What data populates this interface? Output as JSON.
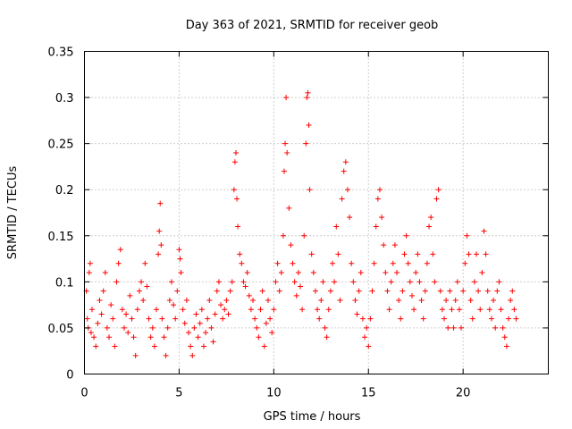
{
  "chart_data": {
    "type": "scatter",
    "marker": "+",
    "title": "Day 363 of 2021, SRMTID for receiver geob",
    "xlabel": "GPS time / hours",
    "ylabel": "SRMTID / TECUs",
    "xlim": [
      0,
      24.5
    ],
    "ylim": [
      0,
      0.35
    ],
    "xticks": [
      0,
      5,
      10,
      15,
      20
    ],
    "xtick_labels": [
      "0",
      "5",
      "10",
      "15",
      "20"
    ],
    "yticks": [
      0,
      0.05,
      0.1,
      0.15,
      0.2,
      0.25,
      0.3,
      0.35
    ],
    "ytick_labels": [
      "0",
      "0.05",
      "0.1",
      "0.15",
      "0.2",
      "0.25",
      "0.3",
      "0.35"
    ],
    "grid": true,
    "color": "#ff0000",
    "series": [
      {
        "name": "SRMTID",
        "points": [
          [
            0.1,
            0.09
          ],
          [
            0.15,
            0.06
          ],
          [
            0.2,
            0.05
          ],
          [
            0.25,
            0.11
          ],
          [
            0.3,
            0.12
          ],
          [
            0.35,
            0.045
          ],
          [
            0.4,
            0.07
          ],
          [
            0.5,
            0.04
          ],
          [
            0.6,
            0.03
          ],
          [
            0.7,
            0.055
          ],
          [
            0.8,
            0.08
          ],
          [
            0.9,
            0.065
          ],
          [
            1.0,
            0.09
          ],
          [
            1.1,
            0.11
          ],
          [
            1.2,
            0.05
          ],
          [
            1.3,
            0.04
          ],
          [
            1.4,
            0.075
          ],
          [
            1.5,
            0.06
          ],
          [
            1.6,
            0.03
          ],
          [
            1.7,
            0.1
          ],
          [
            1.8,
            0.12
          ],
          [
            1.9,
            0.135
          ],
          [
            2.0,
            0.07
          ],
          [
            2.1,
            0.05
          ],
          [
            2.2,
            0.065
          ],
          [
            2.3,
            0.045
          ],
          [
            2.4,
            0.085
          ],
          [
            2.5,
            0.06
          ],
          [
            2.6,
            0.04
          ],
          [
            2.7,
            0.02
          ],
          [
            2.8,
            0.07
          ],
          [
            2.9,
            0.09
          ],
          [
            3.0,
            0.1
          ],
          [
            3.1,
            0.08
          ],
          [
            3.2,
            0.12
          ],
          [
            3.3,
            0.095
          ],
          [
            3.4,
            0.06
          ],
          [
            3.5,
            0.04
          ],
          [
            3.6,
            0.05
          ],
          [
            3.7,
            0.03
          ],
          [
            3.8,
            0.07
          ],
          [
            3.9,
            0.13
          ],
          [
            3.95,
            0.155
          ],
          [
            4.0,
            0.185
          ],
          [
            4.05,
            0.14
          ],
          [
            4.1,
            0.06
          ],
          [
            4.2,
            0.04
          ],
          [
            4.3,
            0.02
          ],
          [
            4.4,
            0.05
          ],
          [
            4.5,
            0.08
          ],
          [
            4.6,
            0.1
          ],
          [
            4.7,
            0.075
          ],
          [
            4.8,
            0.06
          ],
          [
            4.9,
            0.09
          ],
          [
            5.0,
            0.135
          ],
          [
            5.05,
            0.125
          ],
          [
            5.1,
            0.11
          ],
          [
            5.2,
            0.07
          ],
          [
            5.3,
            0.055
          ],
          [
            5.4,
            0.08
          ],
          [
            5.5,
            0.045
          ],
          [
            5.6,
            0.03
          ],
          [
            5.7,
            0.02
          ],
          [
            5.8,
            0.05
          ],
          [
            5.9,
            0.065
          ],
          [
            6.0,
            0.04
          ],
          [
            6.1,
            0.055
          ],
          [
            6.2,
            0.07
          ],
          [
            6.3,
            0.03
          ],
          [
            6.4,
            0.045
          ],
          [
            6.5,
            0.06
          ],
          [
            6.6,
            0.08
          ],
          [
            6.7,
            0.05
          ],
          [
            6.8,
            0.035
          ],
          [
            6.9,
            0.065
          ],
          [
            7.0,
            0.09
          ],
          [
            7.1,
            0.1
          ],
          [
            7.2,
            0.075
          ],
          [
            7.3,
            0.06
          ],
          [
            7.4,
            0.07
          ],
          [
            7.5,
            0.08
          ],
          [
            7.6,
            0.065
          ],
          [
            7.7,
            0.09
          ],
          [
            7.8,
            0.1
          ],
          [
            7.9,
            0.2
          ],
          [
            7.95,
            0.23
          ],
          [
            8.0,
            0.24
          ],
          [
            8.05,
            0.19
          ],
          [
            8.1,
            0.16
          ],
          [
            8.2,
            0.13
          ],
          [
            8.3,
            0.12
          ],
          [
            8.4,
            0.1
          ],
          [
            8.5,
            0.095
          ],
          [
            8.6,
            0.11
          ],
          [
            8.7,
            0.085
          ],
          [
            8.8,
            0.07
          ],
          [
            8.9,
            0.08
          ],
          [
            9.0,
            0.06
          ],
          [
            9.1,
            0.05
          ],
          [
            9.2,
            0.04
          ],
          [
            9.3,
            0.07
          ],
          [
            9.4,
            0.09
          ],
          [
            9.5,
            0.03
          ],
          [
            9.6,
            0.055
          ],
          [
            9.7,
            0.08
          ],
          [
            9.8,
            0.06
          ],
          [
            9.9,
            0.045
          ],
          [
            10.0,
            0.07
          ],
          [
            10.1,
            0.1
          ],
          [
            10.2,
            0.12
          ],
          [
            10.3,
            0.09
          ],
          [
            10.4,
            0.11
          ],
          [
            10.5,
            0.15
          ],
          [
            10.55,
            0.22
          ],
          [
            10.6,
            0.25
          ],
          [
            10.65,
            0.3
          ],
          [
            10.7,
            0.24
          ],
          [
            10.8,
            0.18
          ],
          [
            10.9,
            0.14
          ],
          [
            11.0,
            0.12
          ],
          [
            11.1,
            0.1
          ],
          [
            11.2,
            0.085
          ],
          [
            11.3,
            0.11
          ],
          [
            11.4,
            0.095
          ],
          [
            11.5,
            0.07
          ],
          [
            11.6,
            0.15
          ],
          [
            11.7,
            0.25
          ],
          [
            11.75,
            0.3
          ],
          [
            11.8,
            0.305
          ],
          [
            11.85,
            0.27
          ],
          [
            11.9,
            0.2
          ],
          [
            12.0,
            0.13
          ],
          [
            12.1,
            0.11
          ],
          [
            12.2,
            0.09
          ],
          [
            12.3,
            0.07
          ],
          [
            12.4,
            0.06
          ],
          [
            12.5,
            0.08
          ],
          [
            12.6,
            0.1
          ],
          [
            12.7,
            0.05
          ],
          [
            12.8,
            0.04
          ],
          [
            12.9,
            0.07
          ],
          [
            13.0,
            0.09
          ],
          [
            13.1,
            0.12
          ],
          [
            13.2,
            0.1
          ],
          [
            13.3,
            0.16
          ],
          [
            13.4,
            0.13
          ],
          [
            13.5,
            0.08
          ],
          [
            13.6,
            0.19
          ],
          [
            13.7,
            0.22
          ],
          [
            13.8,
            0.23
          ],
          [
            13.9,
            0.2
          ],
          [
            14.0,
            0.17
          ],
          [
            14.1,
            0.12
          ],
          [
            14.2,
            0.1
          ],
          [
            14.3,
            0.08
          ],
          [
            14.4,
            0.065
          ],
          [
            14.5,
            0.09
          ],
          [
            14.6,
            0.11
          ],
          [
            14.7,
            0.06
          ],
          [
            14.8,
            0.04
          ],
          [
            14.9,
            0.05
          ],
          [
            15.0,
            0.03
          ],
          [
            15.1,
            0.06
          ],
          [
            15.2,
            0.09
          ],
          [
            15.3,
            0.12
          ],
          [
            15.4,
            0.16
          ],
          [
            15.5,
            0.19
          ],
          [
            15.6,
            0.2
          ],
          [
            15.7,
            0.17
          ],
          [
            15.8,
            0.14
          ],
          [
            15.9,
            0.11
          ],
          [
            16.0,
            0.09
          ],
          [
            16.1,
            0.07
          ],
          [
            16.2,
            0.1
          ],
          [
            16.3,
            0.12
          ],
          [
            16.4,
            0.14
          ],
          [
            16.5,
            0.11
          ],
          [
            16.6,
            0.08
          ],
          [
            16.7,
            0.06
          ],
          [
            16.8,
            0.09
          ],
          [
            16.9,
            0.13
          ],
          [
            17.0,
            0.15
          ],
          [
            17.1,
            0.12
          ],
          [
            17.2,
            0.1
          ],
          [
            17.3,
            0.085
          ],
          [
            17.4,
            0.07
          ],
          [
            17.5,
            0.11
          ],
          [
            17.6,
            0.13
          ],
          [
            17.7,
            0.1
          ],
          [
            17.8,
            0.08
          ],
          [
            17.9,
            0.06
          ],
          [
            18.0,
            0.09
          ],
          [
            18.1,
            0.12
          ],
          [
            18.2,
            0.16
          ],
          [
            18.3,
            0.17
          ],
          [
            18.4,
            0.13
          ],
          [
            18.5,
            0.1
          ],
          [
            18.6,
            0.19
          ],
          [
            18.7,
            0.2
          ],
          [
            18.8,
            0.09
          ],
          [
            18.9,
            0.07
          ],
          [
            19.0,
            0.06
          ],
          [
            19.1,
            0.08
          ],
          [
            19.2,
            0.05
          ],
          [
            19.3,
            0.09
          ],
          [
            19.4,
            0.07
          ],
          [
            19.5,
            0.05
          ],
          [
            19.6,
            0.08
          ],
          [
            19.7,
            0.1
          ],
          [
            19.8,
            0.07
          ],
          [
            19.9,
            0.05
          ],
          [
            20.0,
            0.09
          ],
          [
            20.1,
            0.12
          ],
          [
            20.2,
            0.15
          ],
          [
            20.3,
            0.13
          ],
          [
            20.4,
            0.08
          ],
          [
            20.5,
            0.06
          ],
          [
            20.6,
            0.1
          ],
          [
            20.7,
            0.13
          ],
          [
            20.8,
            0.09
          ],
          [
            20.9,
            0.07
          ],
          [
            21.0,
            0.11
          ],
          [
            21.1,
            0.155
          ],
          [
            21.2,
            0.13
          ],
          [
            21.3,
            0.09
          ],
          [
            21.4,
            0.07
          ],
          [
            21.5,
            0.06
          ],
          [
            21.6,
            0.08
          ],
          [
            21.7,
            0.05
          ],
          [
            21.8,
            0.09
          ],
          [
            21.9,
            0.1
          ],
          [
            22.0,
            0.07
          ],
          [
            22.1,
            0.05
          ],
          [
            22.2,
            0.04
          ],
          [
            22.3,
            0.03
          ],
          [
            22.4,
            0.06
          ],
          [
            22.5,
            0.08
          ],
          [
            22.6,
            0.09
          ],
          [
            22.7,
            0.07
          ],
          [
            22.8,
            0.06
          ]
        ]
      }
    ]
  }
}
